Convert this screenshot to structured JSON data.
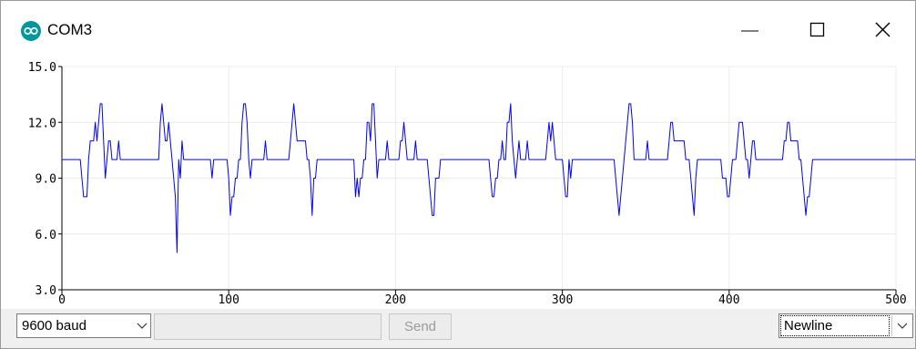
{
  "window": {
    "title": "COM3",
    "buttons": [
      "minimize-icon",
      "maximize-icon",
      "close-icon"
    ],
    "app_icon": "arduino-infinity-icon",
    "accent_color": "#00979d"
  },
  "chart_data": {
    "type": "line",
    "xlim": [
      0,
      500
    ],
    "ylim": [
      3,
      15
    ],
    "x_ticks": [
      "0",
      "100",
      "200",
      "300",
      "400",
      "500"
    ],
    "y_ticks": [
      "3.0",
      "6.0",
      "9.0",
      "12.0",
      "15.0"
    ],
    "grid": true,
    "series": [
      {
        "color": "#0000ff",
        "values": [
          10,
          10,
          10,
          10,
          10,
          10,
          10,
          10,
          10,
          10,
          10,
          10,
          9,
          8,
          8,
          8,
          10,
          11,
          11,
          11,
          12,
          11,
          12,
          13,
          13,
          11,
          9,
          10,
          11,
          11,
          10,
          10,
          10,
          10,
          11,
          10,
          10,
          10,
          10,
          10,
          10,
          10,
          10,
          10,
          10,
          10,
          10,
          10,
          10,
          10,
          10,
          10,
          10,
          10,
          10,
          10,
          10,
          10,
          10,
          12,
          13,
          12,
          11,
          11,
          12,
          11,
          10,
          9,
          8,
          5,
          10,
          9,
          11,
          10,
          10,
          10,
          10,
          10,
          10,
          10,
          10,
          10,
          10,
          10,
          10,
          10,
          10,
          10,
          10,
          10,
          9,
          10,
          10,
          10,
          10,
          10,
          10,
          10,
          10,
          10,
          9,
          7,
          8,
          8,
          9,
          9,
          10,
          10,
          12,
          13,
          13,
          12,
          10,
          9,
          10,
          10,
          10,
          10,
          10,
          10,
          10,
          10,
          11,
          10,
          10,
          10,
          10,
          10,
          10,
          10,
          10,
          10,
          10,
          10,
          10,
          10,
          10,
          11,
          12,
          13,
          12,
          11,
          11,
          11,
          11,
          11,
          11,
          10,
          10,
          9,
          7,
          9,
          9,
          10,
          10,
          10,
          10,
          10,
          10,
          10,
          10,
          10,
          10,
          10,
          10,
          10,
          10,
          10,
          10,
          10,
          10,
          10,
          10,
          10,
          10,
          10,
          8,
          9,
          8,
          9,
          9,
          10,
          10,
          12,
          12,
          11,
          13,
          13,
          11,
          9,
          10,
          10,
          10,
          10,
          10,
          11,
          10,
          10,
          10,
          10,
          10,
          10,
          10,
          11,
          11,
          12,
          11,
          10,
          10,
          10,
          10,
          10,
          11,
          10,
          10,
          10,
          10,
          10,
          10,
          10,
          9,
          8,
          7,
          7,
          9,
          9,
          9,
          10,
          10,
          10,
          10,
          10,
          10,
          10,
          10,
          10,
          10,
          10,
          10,
          10,
          10,
          10,
          10,
          10,
          10,
          10,
          10,
          10,
          10,
          10,
          10,
          10,
          10,
          10,
          10,
          10,
          10,
          9,
          8,
          8,
          9,
          9,
          10,
          10,
          11,
          10,
          10,
          12,
          12,
          13,
          11,
          10,
          9,
          10,
          11,
          10,
          10,
          10,
          10,
          11,
          10,
          10,
          10,
          10,
          10,
          10,
          10,
          10,
          10,
          10,
          10,
          11,
          12,
          11,
          12,
          11,
          10,
          10,
          10,
          10,
          10,
          9,
          8,
          8,
          10,
          9,
          10,
          10,
          10,
          10,
          10,
          10,
          10,
          10,
          10,
          10,
          10,
          10,
          10,
          10,
          10,
          10,
          10,
          10,
          10,
          10,
          10,
          10,
          10,
          10,
          10,
          10,
          9,
          8,
          7,
          8,
          9,
          10,
          11,
          12,
          13,
          13,
          12,
          10,
          10,
          10,
          10,
          10,
          10,
          10,
          10,
          11,
          10,
          10,
          10,
          10,
          10,
          10,
          10,
          10,
          10,
          10,
          10,
          10,
          11,
          12,
          12,
          11,
          11,
          11,
          11,
          11,
          11,
          11,
          10,
          10,
          10,
          9,
          8,
          7,
          9,
          10,
          10,
          10,
          10,
          10,
          10,
          10,
          10,
          10,
          10,
          10,
          10,
          10,
          10,
          10,
          9,
          9,
          9,
          8,
          8,
          9,
          10,
          10,
          10,
          11,
          12,
          12,
          12,
          11,
          10,
          10,
          9,
          10,
          11,
          11,
          10,
          10,
          10,
          10,
          10,
          10,
          10,
          10,
          10,
          10,
          10,
          10,
          10,
          10,
          10,
          10,
          10,
          11,
          11,
          12,
          12,
          11,
          11,
          11,
          11,
          11,
          10,
          10,
          9,
          8,
          7,
          8,
          8,
          9,
          10,
          10,
          10,
          10,
          10,
          10,
          10,
          10,
          10,
          10,
          10,
          10,
          10,
          10,
          10,
          10,
          10,
          10,
          10,
          10,
          10,
          10,
          10,
          10,
          10,
          10,
          10,
          10,
          10,
          10,
          10,
          10,
          10,
          10,
          10,
          10,
          10,
          10,
          10,
          10,
          10,
          10,
          10,
          10,
          10,
          10,
          10,
          10,
          10,
          10,
          10,
          10,
          10,
          10,
          10,
          10,
          10,
          10,
          10,
          10,
          10,
          10,
          10,
          11
        ]
      }
    ]
  },
  "bottom": {
    "baud_label": "9600 baud",
    "send_input_value": "",
    "send_label": "Send",
    "line_ending_label": "Newline",
    "chevron": "chevron-down-icon"
  }
}
